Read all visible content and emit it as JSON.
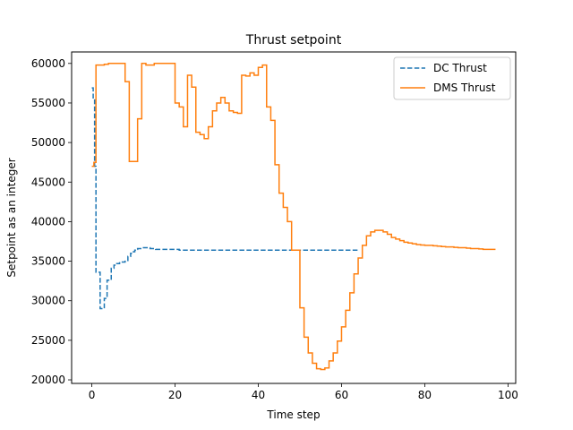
{
  "chart_data": {
    "type": "line",
    "title": "Thrust setpoint",
    "xlabel": "Time step",
    "ylabel": "Setpoint as an integer",
    "xlim": [
      -4.85,
      101.85
    ],
    "ylim": [
      19550,
      61450
    ],
    "xticks": [
      0,
      20,
      40,
      60,
      80,
      100
    ],
    "yticks": [
      20000,
      25000,
      30000,
      35000,
      40000,
      45000,
      50000,
      55000,
      60000
    ],
    "legend_position": "top-right",
    "grid": false,
    "series": [
      {
        "name": "DC Thrust",
        "style": "dashed",
        "step": "post",
        "color": "#1f77b4",
        "x": [
          0,
          0.33,
          0.67,
          1,
          1.33,
          1.67,
          2,
          2.33,
          2.67,
          3,
          3.33,
          3.67,
          4,
          4.33,
          4.67,
          5,
          5.33,
          5.67,
          6,
          6.33,
          6.67,
          7,
          7.33,
          7.67,
          8,
          8.33,
          8.67,
          9,
          9.33,
          9.67,
          10,
          10.33,
          10.67,
          11,
          11.33,
          11.67,
          12,
          12.33,
          12.67,
          13,
          13.33,
          13.67,
          14,
          14.33,
          14.67,
          15,
          15.33,
          15.67,
          16,
          16.33,
          16.67,
          17,
          17.33,
          17.67,
          18,
          18.33,
          18.67,
          19,
          19.33,
          19.67,
          20,
          21,
          22,
          23,
          24,
          25,
          26,
          27,
          28,
          29,
          30,
          31,
          32,
          33,
          34,
          35,
          36,
          37,
          38,
          39,
          40,
          41,
          42,
          43,
          44,
          45,
          46,
          47,
          48,
          49,
          50,
          51,
          52,
          53,
          54,
          55,
          56,
          57,
          58,
          59,
          60,
          61,
          62,
          63,
          64
        ],
        "y": [
          56900,
          55500,
          47000,
          33600,
          33600,
          33600,
          29000,
          29000,
          29000,
          30300,
          30300,
          32600,
          32600,
          32600,
          34100,
          34100,
          34500,
          34500,
          34700,
          34700,
          34800,
          34800,
          34900,
          34900,
          35000,
          35000,
          35600,
          35600,
          36000,
          36000,
          36200,
          36400,
          36500,
          36600,
          36600,
          36600,
          36700,
          36700,
          36700,
          36700,
          36700,
          36700,
          36600,
          36600,
          36600,
          36600,
          36500,
          36500,
          36500,
          36500,
          36500,
          36500,
          36500,
          36500,
          36500,
          36500,
          36500,
          36500,
          36500,
          36500,
          36500,
          36400,
          36400,
          36400,
          36400,
          36400,
          36400,
          36400,
          36400,
          36400,
          36400,
          36400,
          36400,
          36400,
          36400,
          36400,
          36400,
          36400,
          36400,
          36400,
          36400,
          36400,
          36400,
          36400,
          36400,
          36400,
          36400,
          36400,
          36400,
          36400,
          36400,
          36400,
          36400,
          36400,
          36400,
          36400,
          36400,
          36400,
          36400,
          36400,
          36400,
          36400,
          36400,
          36400,
          36400
        ]
      },
      {
        "name": "DMS Thrust",
        "style": "solid",
        "step": "post",
        "color": "#ff7f0e",
        "x": [
          0,
          0.5,
          1,
          2,
          3,
          4,
          5,
          6,
          7,
          8,
          9,
          10,
          11,
          12,
          13,
          14,
          15,
          16,
          17,
          18,
          19,
          20,
          21,
          22,
          23,
          24,
          25,
          26,
          27,
          28,
          29,
          30,
          31,
          32,
          33,
          34,
          35,
          36,
          37,
          38,
          39,
          40,
          41,
          42,
          43,
          44,
          45,
          46,
          47,
          48,
          49,
          50,
          51,
          52,
          53,
          54,
          55,
          56,
          57,
          58,
          59,
          60,
          61,
          62,
          63,
          64,
          65,
          66,
          67,
          68,
          69,
          70,
          71,
          72,
          73,
          74,
          75,
          76,
          77,
          78,
          79,
          80,
          81,
          82,
          83,
          84,
          85,
          86,
          87,
          88,
          89,
          90,
          91,
          92,
          93,
          94,
          95,
          96,
          97
        ],
        "y": [
          47000,
          47500,
          59800,
          59800,
          59900,
          60000,
          60000,
          60000,
          60000,
          57700,
          47600,
          47600,
          53000,
          60000,
          59800,
          59800,
          60000,
          60000,
          60000,
          60000,
          60000,
          55000,
          54500,
          52000,
          58500,
          57000,
          51300,
          51000,
          50500,
          52000,
          54000,
          55000,
          55700,
          55000,
          54000,
          53800,
          53700,
          58500,
          58400,
          58800,
          58500,
          59500,
          59800,
          54500,
          52800,
          47200,
          43600,
          41800,
          40000,
          36400,
          36400,
          29100,
          25400,
          23400,
          22100,
          21400,
          21300,
          21500,
          22400,
          23400,
          24900,
          26700,
          28800,
          31000,
          33400,
          35400,
          37000,
          38200,
          38700,
          38900,
          38900,
          38700,
          38400,
          38000,
          37800,
          37600,
          37400,
          37300,
          37200,
          37100,
          37050,
          37000,
          37000,
          36950,
          36900,
          36850,
          36800,
          36800,
          36750,
          36700,
          36700,
          36650,
          36600,
          36600,
          36550,
          36500,
          36500,
          36500,
          36500
        ]
      }
    ]
  }
}
